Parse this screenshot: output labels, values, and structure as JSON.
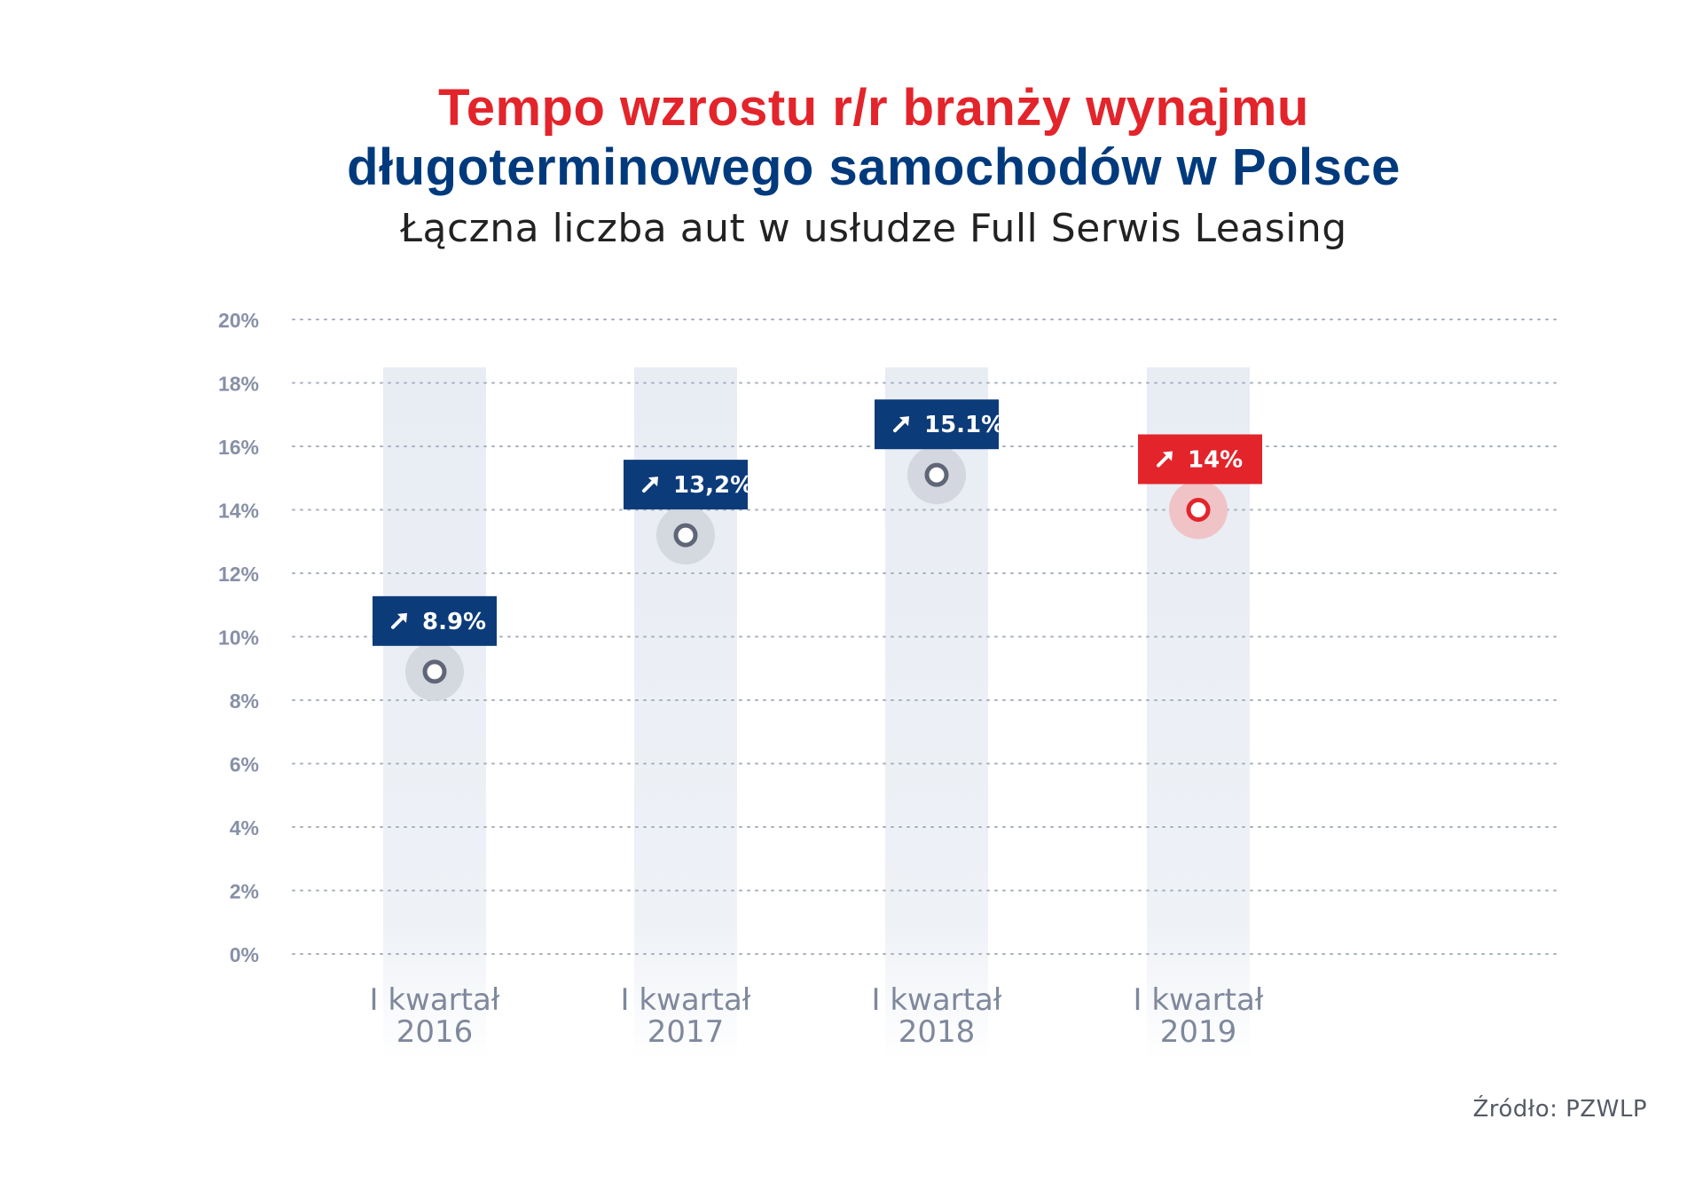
{
  "header": {
    "title_line1": "Tempo wzrostu r/r branży wynajmu",
    "title_line2": "długoterminowego samochodów w Polsce",
    "subtitle": "Łączna liczba aut w usłudze Full Serwis Leasing"
  },
  "footer": {
    "source": "Źródło: PZWLP"
  },
  "colors": {
    "title_red": "#e3242b",
    "title_navy": "#003a7d",
    "badge_navy": "#0c3b7a",
    "highlight_red": "#e3242b",
    "stem_gray": "#8a93a8",
    "column_band": "#e9edf4",
    "axis_text": "#8790a6"
  },
  "icons": {
    "badge_icon": "arrow-up-right-icon"
  },
  "chart_data": {
    "type": "lollipop",
    "title": "Tempo wzrostu r/r branży wynajmu długoterminowego samochodów w Polsce",
    "subtitle": "Łączna liczba aut w usłudze Full Serwis Leasing",
    "xlabel": "",
    "ylabel": "",
    "ylim": [
      0,
      20
    ],
    "yticks": [
      0,
      2,
      4,
      6,
      8,
      10,
      12,
      14,
      16,
      18,
      20
    ],
    "ytick_labels": [
      "0%",
      "2%",
      "4%",
      "6%",
      "8%",
      "10%",
      "12%",
      "14%",
      "16%",
      "18%",
      "20%"
    ],
    "grid": "horizontal dotted",
    "categories": [
      {
        "line1": "I kwartał",
        "line2": "2016"
      },
      {
        "line1": "I kwartał",
        "line2": "2017"
      },
      {
        "line1": "I kwartał",
        "line2": "2018"
      },
      {
        "line1": "I kwartał",
        "line2": "2019"
      }
    ],
    "values": [
      8.9,
      13.2,
      15.1,
      14
    ],
    "data_labels": [
      "8.9%",
      "13,2%",
      "15.1%",
      "14%"
    ],
    "highlighted_index": 3
  }
}
